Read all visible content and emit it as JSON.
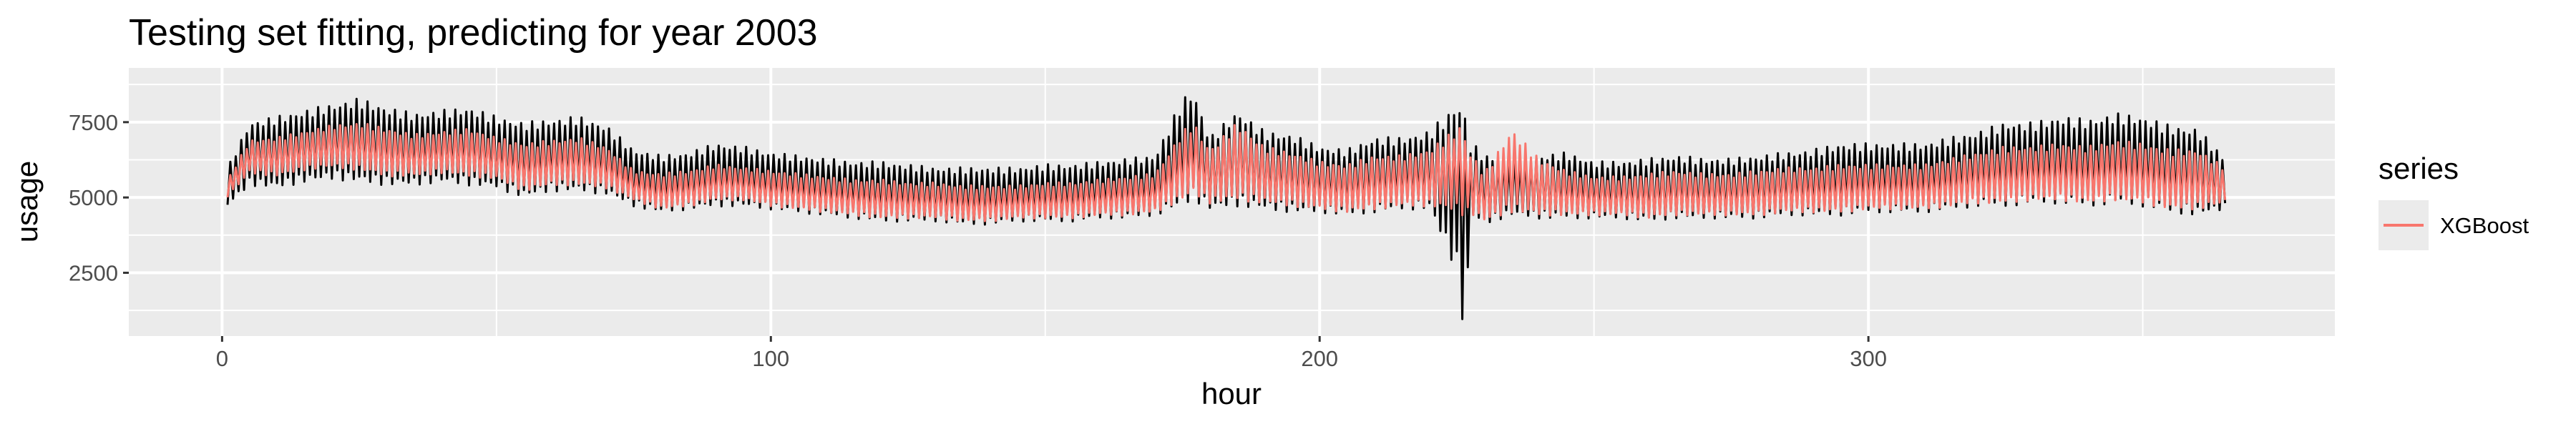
{
  "chart_data": {
    "type": "line",
    "title": "Testing set fitting, predicting for year 2003",
    "xlabel": "hour",
    "ylabel": "usage",
    "xlim": [
      -17,
      385
    ],
    "ylim": [
      400,
      9300
    ],
    "x_ticks": [
      0,
      100,
      200,
      300
    ],
    "y_ticks": [
      2500,
      5000,
      7500
    ],
    "grid": true,
    "legend": {
      "title": "series",
      "position": "right",
      "entries": [
        {
          "label": "XGBoost",
          "color": "#f8766d"
        }
      ]
    },
    "colors": {
      "panel": "#ebebeb",
      "grid": "#ffffff",
      "actual": "#000000",
      "prediction": "#f8766d"
    },
    "series": [
      {
        "x": [
          1,
          5,
          10,
          15,
          20,
          25,
          30,
          35,
          40,
          45,
          50,
          55,
          60,
          65,
          70,
          75,
          80,
          85,
          90,
          95,
          100,
          105,
          110,
          115,
          120,
          125,
          130,
          135,
          140,
          145,
          150,
          155,
          160,
          165,
          170,
          175,
          177,
          180,
          185,
          190,
          195,
          200,
          205,
          210,
          215,
          220,
          225,
          226,
          227,
          228,
          230,
          235,
          240,
          245,
          250,
          255,
          260,
          265,
          270,
          275,
          280,
          285,
          290,
          295,
          300,
          305,
          310,
          315,
          320,
          325,
          330,
          335,
          340,
          345,
          350,
          355,
          360,
          365
        ],
        "upper": [
          6000,
          7500,
          7700,
          7900,
          8100,
          8300,
          8000,
          7800,
          7900,
          8000,
          7700,
          7500,
          7600,
          7700,
          7400,
          6600,
          6400,
          6500,
          6800,
          6700,
          6500,
          6400,
          6300,
          6200,
          6200,
          6100,
          6000,
          6000,
          6000,
          6000,
          6100,
          6100,
          6200,
          6300,
          6400,
          8300,
          8600,
          7000,
          7900,
          7200,
          7100,
          6700,
          6600,
          7000,
          7000,
          7200,
          8200,
          8500,
          7000,
          6800,
          6400,
          6400,
          6400,
          6500,
          6200,
          6200,
          6300,
          6400,
          6300,
          6300,
          6400,
          6500,
          6600,
          6800,
          6800,
          6800,
          6800,
          7000,
          7200,
          7500,
          7500,
          7700,
          7600,
          7800,
          7700,
          7400,
          7300,
          6300
        ],
        "lower": [
          4700,
          5400,
          5300,
          5500,
          5600,
          5500,
          5400,
          5400,
          5500,
          5400,
          5300,
          5000,
          5200,
          5200,
          5100,
          4700,
          4500,
          4600,
          4700,
          4700,
          4600,
          4500,
          4400,
          4300,
          4200,
          4200,
          4200,
          4100,
          4100,
          4200,
          4200,
          4200,
          4300,
          4300,
          4400,
          4700,
          4900,
          4600,
          4700,
          4600,
          4500,
          4500,
          4400,
          4500,
          4600,
          4600,
          2500,
          900,
          2200,
          4300,
          4100,
          4400,
          4300,
          4300,
          4300,
          4300,
          4200,
          4300,
          4300,
          4300,
          4300,
          4400,
          4400,
          4400,
          4500,
          4500,
          4500,
          4600,
          4700,
          4700,
          4800,
          4800,
          4700,
          4800,
          4700,
          4500,
          4400,
          4600
        ]
      },
      {
        "name": "XGBoost",
        "x": [
          1,
          5,
          10,
          15,
          20,
          25,
          30,
          35,
          40,
          45,
          50,
          55,
          60,
          65,
          70,
          75,
          80,
          85,
          90,
          95,
          100,
          105,
          110,
          115,
          120,
          125,
          130,
          135,
          140,
          145,
          150,
          155,
          160,
          165,
          170,
          175,
          177,
          180,
          185,
          190,
          195,
          200,
          205,
          210,
          215,
          220,
          225,
          226,
          227,
          228,
          230,
          235,
          240,
          245,
          250,
          255,
          260,
          265,
          270,
          275,
          280,
          285,
          290,
          295,
          300,
          305,
          310,
          315,
          320,
          325,
          330,
          335,
          340,
          345,
          350,
          355,
          360,
          365
        ],
        "upper": [
          5600,
          6900,
          7000,
          7200,
          7400,
          7500,
          7300,
          7100,
          7200,
          7300,
          7000,
          6800,
          6900,
          7000,
          6700,
          5900,
          5800,
          5900,
          6100,
          6000,
          5900,
          5800,
          5700,
          5600,
          5600,
          5500,
          5500,
          5400,
          5400,
          5400,
          5500,
          5500,
          5600,
          5700,
          5800,
          7200,
          7500,
          6600,
          7500,
          6700,
          6500,
          6200,
          6100,
          6400,
          6400,
          6600,
          7300,
          7500,
          6600,
          6400,
          5800,
          7300,
          6300,
          5900,
          5700,
          5700,
          5800,
          5900,
          5800,
          5800,
          5900,
          6000,
          6000,
          6100,
          6100,
          6100,
          6100,
          6300,
          6500,
          6700,
          6700,
          6800,
          6700,
          6900,
          6800,
          6600,
          6600,
          6000
        ],
        "lower": [
          5000,
          5800,
          5700,
          5900,
          6000,
          5900,
          5700,
          5700,
          5800,
          5700,
          5600,
          5200,
          5400,
          5400,
          5300,
          4900,
          4600,
          4700,
          4900,
          4900,
          4700,
          4600,
          4500,
          4400,
          4300,
          4300,
          4300,
          4200,
          4200,
          4300,
          4300,
          4300,
          4400,
          4400,
          4500,
          4900,
          5100,
          4800,
          4900,
          4800,
          4700,
          4600,
          4500,
          4600,
          4700,
          4700,
          4500,
          4400,
          4400,
          4400,
          4200,
          4500,
          4400,
          4400,
          4400,
          4400,
          4300,
          4400,
          4400,
          4400,
          4400,
          4500,
          4500,
          4500,
          4600,
          4600,
          4600,
          4700,
          4800,
          4800,
          4900,
          4900,
          4800,
          4900,
          4800,
          4600,
          4600,
          4800
        ]
      }
    ]
  }
}
